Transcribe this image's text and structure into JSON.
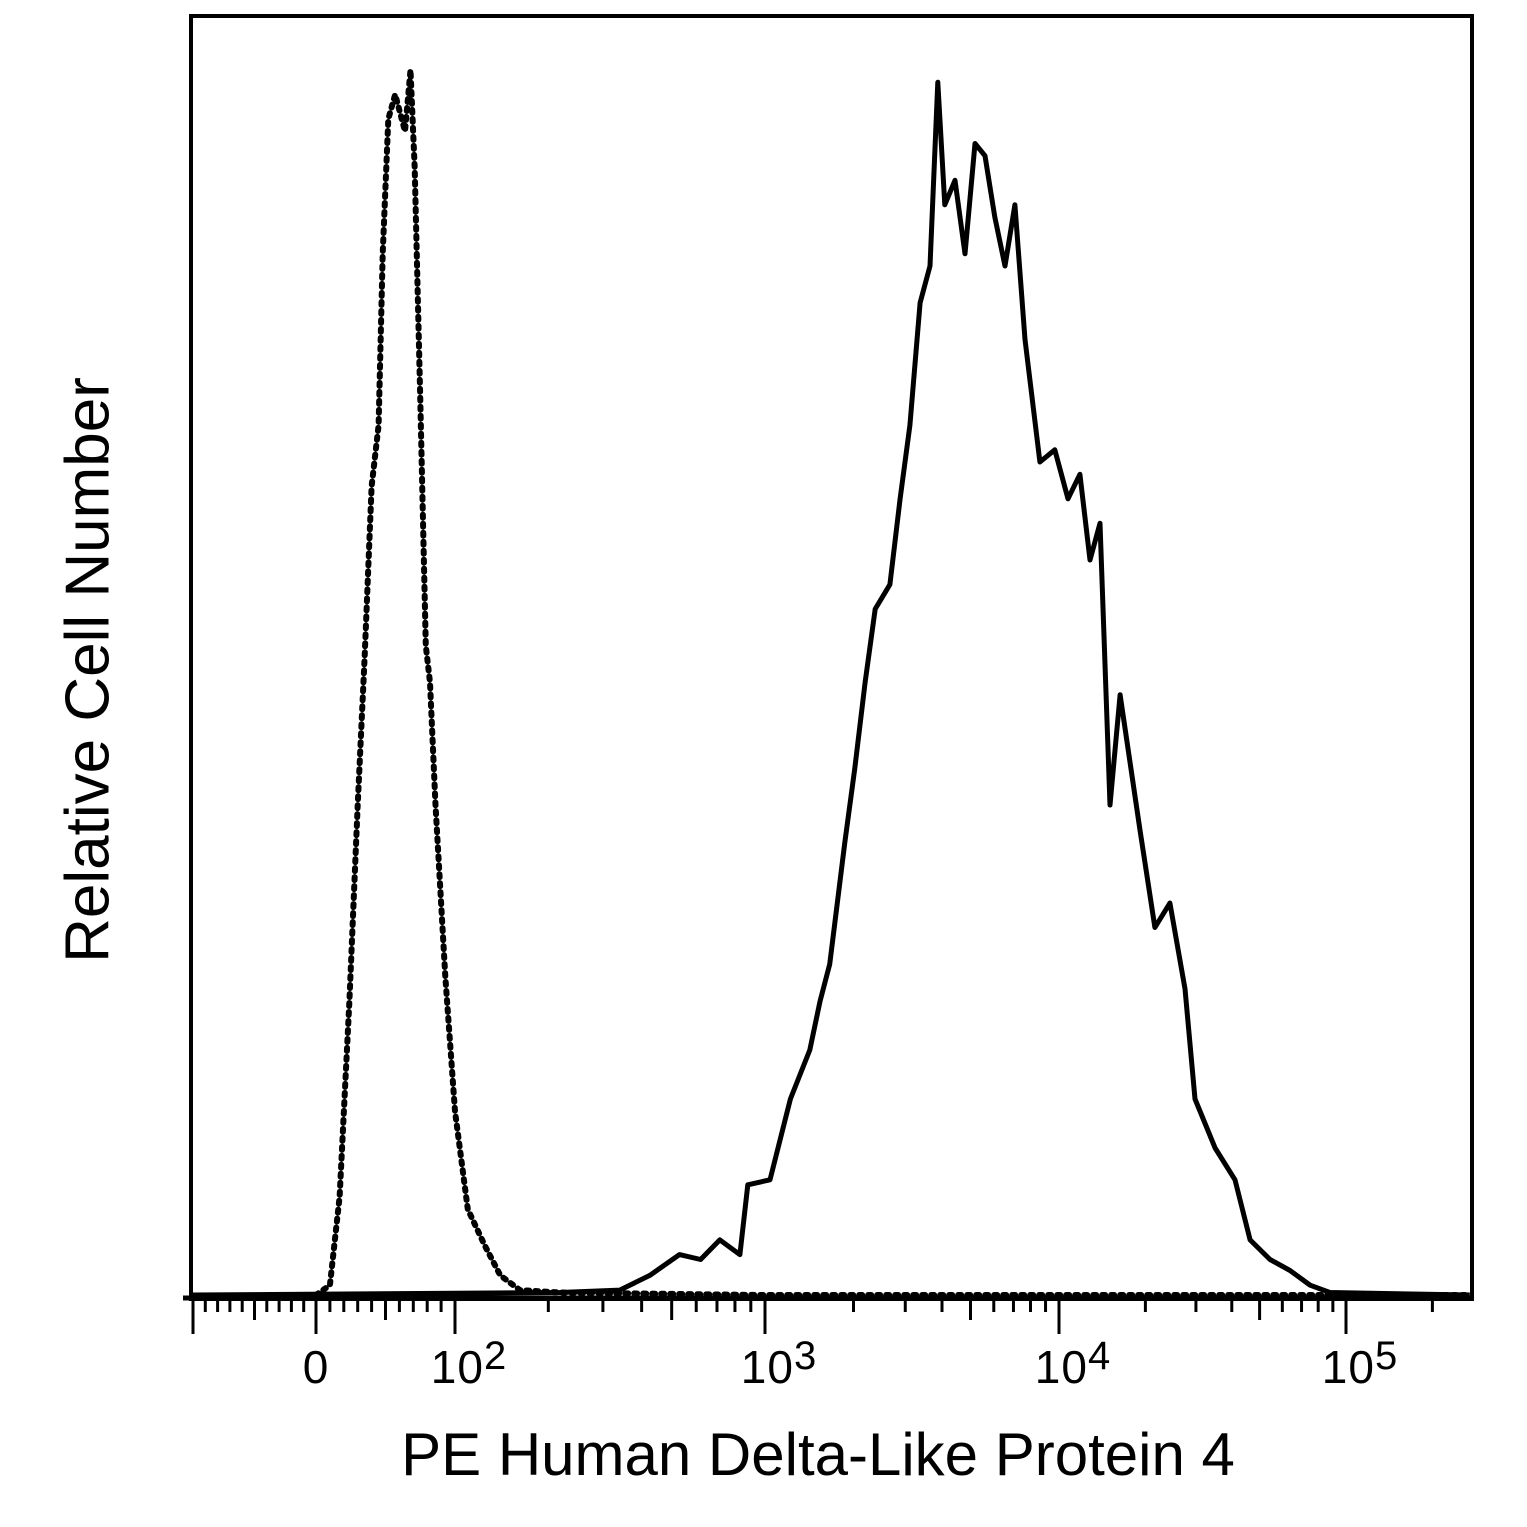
{
  "chart_data": {
    "type": "line",
    "subtype": "flow cytometry histogram",
    "xlabel": "PE Human Delta-Like Protein 4",
    "ylabel": "Relative Cell Number",
    "x_scale": "biexponential (linear near 0, log above 10^2)",
    "xlim": [
      -100,
      270000
    ],
    "ylim": [
      0,
      100
    ],
    "y_unit": "percent of max",
    "grid": false,
    "legend": "none",
    "x_ticks": [
      {
        "value": 0,
        "base": "0",
        "exp": ""
      },
      {
        "value": 100,
        "base": "10",
        "exp": "2"
      },
      {
        "value": 1000,
        "base": "10",
        "exp": "3"
      },
      {
        "value": 10000,
        "base": "10",
        "exp": "4"
      },
      {
        "value": 100000,
        "base": "10",
        "exp": "5"
      }
    ],
    "series": [
      {
        "style": "dotted",
        "color": "#000000",
        "points": [
          [
            0,
            0
          ],
          [
            10,
            0.8
          ],
          [
            17,
            8
          ],
          [
            24,
            24
          ],
          [
            30,
            40
          ],
          [
            35,
            52
          ],
          [
            40,
            66
          ],
          [
            45,
            71
          ],
          [
            48,
            85
          ],
          [
            52,
            96
          ],
          [
            57,
            98
          ],
          [
            64,
            95
          ],
          [
            68,
            100
          ],
          [
            71,
            92
          ],
          [
            75,
            73
          ],
          [
            79,
            53
          ],
          [
            82,
            50
          ],
          [
            86,
            40
          ],
          [
            93,
            26
          ],
          [
            100,
            15
          ],
          [
            110,
            7
          ],
          [
            125,
            4
          ],
          [
            140,
            1.6
          ],
          [
            162,
            0.4
          ],
          [
            218,
            0.2
          ],
          [
            960,
            0
          ],
          [
            270000,
            0
          ]
        ]
      },
      {
        "style": "solid",
        "color": "#000000",
        "points": [
          [
            -100,
            0
          ],
          [
            218,
            0.2
          ],
          [
            340,
            0.4
          ],
          [
            425,
            1.6
          ],
          [
            530,
            3.3
          ],
          [
            620,
            2.9
          ],
          [
            715,
            4.5
          ],
          [
            830,
            3.3
          ],
          [
            880,
            9
          ],
          [
            1040,
            9.4
          ],
          [
            1220,
            16
          ],
          [
            1420,
            20
          ],
          [
            1540,
            24
          ],
          [
            1660,
            27
          ],
          [
            1870,
            37
          ],
          [
            2020,
            43
          ],
          [
            2190,
            50
          ],
          [
            2370,
            56
          ],
          [
            2660,
            58
          ],
          [
            2880,
            65
          ],
          [
            3110,
            71
          ],
          [
            3370,
            81
          ],
          [
            3640,
            84
          ],
          [
            3870,
            99
          ],
          [
            4090,
            89
          ],
          [
            4430,
            91
          ],
          [
            4790,
            85
          ],
          [
            5180,
            94
          ],
          [
            5600,
            93
          ],
          [
            6050,
            88
          ],
          [
            6550,
            84
          ],
          [
            7080,
            89
          ],
          [
            7660,
            78
          ],
          [
            8610,
            68
          ],
          [
            9680,
            69
          ],
          [
            10750,
            65
          ],
          [
            11830,
            67
          ],
          [
            12820,
            60
          ],
          [
            13890,
            63
          ],
          [
            15060,
            40
          ],
          [
            16330,
            49
          ],
          [
            19140,
            38
          ],
          [
            21590,
            30
          ],
          [
            24350,
            32
          ],
          [
            27490,
            25
          ],
          [
            29780,
            16
          ],
          [
            34980,
            12
          ],
          [
            41040,
            9.4
          ],
          [
            46340,
            4.5
          ],
          [
            54330,
            2.9
          ],
          [
            63800,
            2
          ],
          [
            75000,
            0.8
          ],
          [
            87900,
            0.2
          ],
          [
            270000,
            0
          ]
        ]
      }
    ]
  }
}
